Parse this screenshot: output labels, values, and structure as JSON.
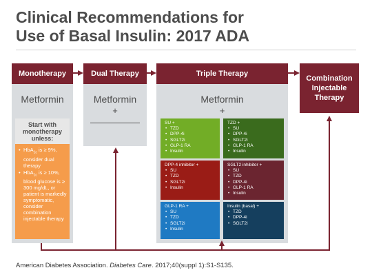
{
  "title_line1": "Clinical Recommendations for",
  "title_line2": "Use of Basal Insulin: 2017 ADA",
  "columns": {
    "monotherapy": {
      "label": "Monotherapy",
      "drug": "Metformin"
    },
    "dual": {
      "label": "Dual Therapy",
      "drug": "Metformin",
      "plus": "+"
    },
    "triple": {
      "label": "Triple Therapy",
      "drug": "Metformin",
      "plus": "+"
    },
    "combination": {
      "label": "Combination Injectable Therapy"
    }
  },
  "start_box": {
    "line1": "Start with",
    "line2": "monotherapy",
    "line3": "unless:"
  },
  "conditions": [
    {
      "prefix": "HbA",
      "sub": "1c",
      "text": " is ≥ 9%, consider dual therapy"
    },
    {
      "prefix": "HbA",
      "sub": "1c",
      "text": " is ≥ 10%, blood glucose is ≥ 300 mg/dL, or patient is markedly symptomatic, consider combination injectable therapy"
    }
  ],
  "triple_cells": [
    {
      "header": "SU +",
      "items": [
        "TZD",
        "DPP-4i",
        "SGLT2i",
        "GLP-1 RA",
        "Insulin"
      ],
      "color": "#72ad26"
    },
    {
      "header": "TZD +",
      "items": [
        "SU",
        "DPP-4i",
        "SGLT2i",
        "GLP-1 RA",
        "Insulin"
      ],
      "color": "#3a6b1d"
    },
    {
      "header": "DPP-4 inhibitor +",
      "items": [
        "SU",
        "TZD",
        "SGLT2i",
        "Insulin"
      ],
      "color": "#9a1c16"
    },
    {
      "header": "SGLT2 inhibitor +",
      "items": [
        "SU",
        "TZD",
        "DPP-4i",
        "GLP-1 RA",
        "Insulin"
      ],
      "color": "#6b2530"
    },
    {
      "header": "GLP-1 RA +",
      "items": [
        "SU",
        "TZD",
        "SGLT2i",
        "Insulin"
      ],
      "color": "#1f7ac3"
    },
    {
      "header": "Insulin (basal) +",
      "items": [
        "TZD",
        "DPP-4i",
        "SGLT2i"
      ],
      "color": "#153f5e"
    }
  ],
  "citation": {
    "pre": "American Diabetes Association. ",
    "journal": "Diabetes Care",
    "post": ". 2017;40(suppl 1):S1-S135."
  },
  "colors": {
    "header": "#7a2330",
    "column_bg": "#d9dcdf",
    "arrow": "#7a2330",
    "condition_bg": "#f59c4b"
  }
}
